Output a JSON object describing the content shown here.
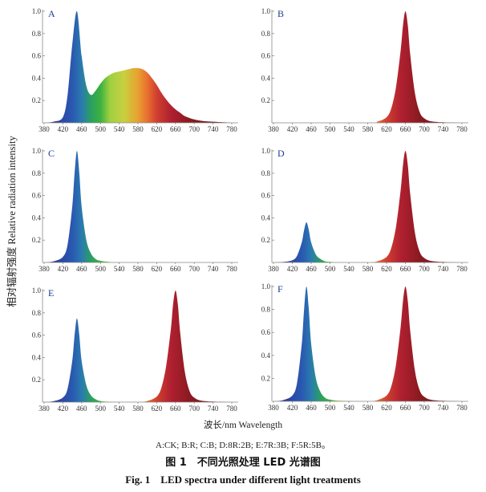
{
  "chart_data": {
    "type": "area",
    "ylabel": "相对辐射强度 Relative radiation intensity",
    "xlabel": "波长/nm Wavelength",
    "xlim": [
      380,
      780
    ],
    "ylim": [
      0,
      1.0
    ],
    "xticks": [
      "380",
      "420",
      "460",
      "500",
      "540",
      "580",
      "620",
      "660",
      "700",
      "740",
      "780"
    ],
    "yticks": [
      "0.2",
      "0.4",
      "0.6",
      "0.8",
      "1.0"
    ],
    "grid": false,
    "legend_note": "A:CK; B:R; C:B; D:8R:2B; E:7R:3B; F:5R:5B。",
    "caption_cn": "图 1　不同光照处理 LED 光谱图",
    "caption_en": "Fig. 1　LED spectra under different light treatments",
    "panels": [
      {
        "label": "A",
        "treatment": "CK",
        "x": [
          380,
          400,
          420,
          430,
          440,
          450,
          460,
          470,
          480,
          490,
          500,
          510,
          520,
          530,
          540,
          550,
          560,
          570,
          580,
          590,
          600,
          610,
          620,
          630,
          640,
          650,
          660,
          670,
          680,
          700,
          720,
          740,
          760,
          780
        ],
        "y": [
          0.0,
          0.01,
          0.05,
          0.25,
          0.7,
          1.0,
          0.6,
          0.33,
          0.25,
          0.29,
          0.35,
          0.4,
          0.43,
          0.45,
          0.46,
          0.47,
          0.48,
          0.49,
          0.49,
          0.48,
          0.45,
          0.4,
          0.34,
          0.27,
          0.21,
          0.16,
          0.12,
          0.09,
          0.06,
          0.03,
          0.015,
          0.01,
          0.005,
          0.0
        ]
      },
      {
        "label": "B",
        "treatment": "R",
        "x": [
          380,
          580,
          600,
          620,
          630,
          640,
          650,
          655,
          660,
          665,
          670,
          680,
          690,
          700,
          720,
          780
        ],
        "y": [
          0.0,
          0.0,
          0.01,
          0.05,
          0.13,
          0.32,
          0.65,
          0.88,
          1.0,
          0.88,
          0.62,
          0.27,
          0.1,
          0.04,
          0.01,
          0.0
        ]
      },
      {
        "label": "C",
        "treatment": "B",
        "x": [
          380,
          400,
          420,
          430,
          440,
          445,
          450,
          455,
          460,
          470,
          480,
          490,
          500,
          520,
          540,
          780
        ],
        "y": [
          0.0,
          0.01,
          0.05,
          0.16,
          0.5,
          0.8,
          1.0,
          0.8,
          0.5,
          0.2,
          0.08,
          0.03,
          0.015,
          0.005,
          0.0,
          0.0
        ]
      },
      {
        "label": "D",
        "treatment": "8R:2B",
        "x": [
          380,
          400,
          420,
          430,
          440,
          445,
          450,
          455,
          460,
          470,
          480,
          490,
          500,
          520,
          580,
          600,
          620,
          630,
          640,
          650,
          655,
          660,
          665,
          670,
          680,
          690,
          700,
          720,
          780
        ],
        "y": [
          0.0,
          0.004,
          0.02,
          0.06,
          0.18,
          0.29,
          0.36,
          0.29,
          0.18,
          0.07,
          0.03,
          0.01,
          0.005,
          0.0,
          0.0,
          0.01,
          0.05,
          0.13,
          0.32,
          0.65,
          0.88,
          1.0,
          0.88,
          0.62,
          0.27,
          0.1,
          0.04,
          0.01,
          0.0
        ]
      },
      {
        "label": "E",
        "treatment": "7R:3B",
        "x": [
          380,
          400,
          420,
          430,
          440,
          445,
          450,
          455,
          460,
          470,
          480,
          490,
          500,
          520,
          580,
          600,
          620,
          630,
          640,
          650,
          655,
          660,
          665,
          670,
          680,
          690,
          700,
          720,
          780
        ],
        "y": [
          0.0,
          0.008,
          0.04,
          0.12,
          0.37,
          0.6,
          0.75,
          0.6,
          0.37,
          0.15,
          0.06,
          0.025,
          0.01,
          0.003,
          0.0,
          0.01,
          0.05,
          0.13,
          0.32,
          0.65,
          0.88,
          1.0,
          0.88,
          0.62,
          0.27,
          0.1,
          0.04,
          0.01,
          0.0
        ]
      },
      {
        "label": "F",
        "treatment": "5R:5B",
        "x": [
          380,
          400,
          420,
          430,
          440,
          445,
          450,
          455,
          460,
          470,
          480,
          490,
          500,
          520,
          580,
          600,
          620,
          630,
          640,
          650,
          655,
          660,
          665,
          670,
          680,
          690,
          700,
          720,
          780
        ],
        "y": [
          0.0,
          0.01,
          0.05,
          0.16,
          0.5,
          0.8,
          1.0,
          0.8,
          0.5,
          0.2,
          0.08,
          0.03,
          0.015,
          0.005,
          0.0,
          0.01,
          0.05,
          0.13,
          0.32,
          0.65,
          0.88,
          1.0,
          0.88,
          0.62,
          0.27,
          0.1,
          0.04,
          0.01,
          0.0
        ]
      }
    ]
  },
  "colors": {
    "axis": "#888888",
    "spectrum_stops": [
      "#3a2a7a",
      "#2a4aa8",
      "#2a58b0",
      "#2a7ab0",
      "#2aa060",
      "#3cb040",
      "#9ed040",
      "#c8d040",
      "#e8a030",
      "#e87030",
      "#d04030",
      "#b02030",
      "#8a1a20",
      "#5a1a20"
    ]
  }
}
